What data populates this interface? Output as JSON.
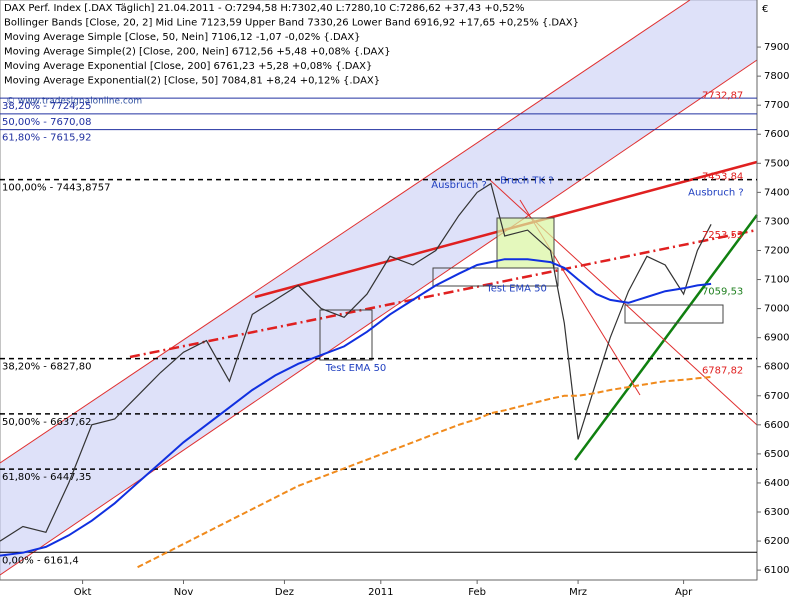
{
  "chart_data": {
    "type": "line",
    "currency": "€",
    "watermark": "© www.tradesignalonline.com",
    "legend_lines": [
      "DAX Perf. Index [.DAX  Täglich]  21.04.2011 - O:7294,58 H:7302,40 L:7280,10 C:7286,62 +37,43 +0,52%",
      "Bollinger Bands [Close, 20, 2] Mid Line 7123,59 Upper Band 7330,26 Lower Band 6916,92 +17,65 +0,25% {.DAX}",
      "Moving Average Simple [Close, 50, Nein] 7106,12 -1,07 -0,02% {.DAX}",
      "Moving Average Simple(2) [Close, 200, Nein] 6712,56 +5,48 +0,08% {.DAX}",
      "Moving Average Exponential [Close, 200] 6761,23 +5,28 +0,08% {.DAX}",
      "Moving Average Exponential(2) [Close, 50] 7084,81 +8,24 +0,12% {.DAX}"
    ],
    "x": [
      0,
      5,
      10,
      15,
      20,
      25,
      30,
      35,
      40,
      45,
      50,
      55,
      60,
      65,
      70,
      75,
      80,
      85,
      90,
      95,
      100,
      104,
      107,
      110,
      115,
      120,
      123,
      126,
      130,
      133,
      137,
      141,
      145,
      149,
      152,
      155
    ],
    "series": [
      {
        "name": "Close",
        "color": "#333333",
        "values": [
          6200,
          6250,
          6230,
          6400,
          6600,
          6620,
          6700,
          6780,
          6850,
          6890,
          6750,
          6980,
          7030,
          7080,
          7000,
          6970,
          7050,
          7180,
          7150,
          7200,
          7320,
          7400,
          7430,
          7250,
          7270,
          7200,
          6950,
          6550,
          6750,
          6900,
          7060,
          7180,
          7150,
          7050,
          7200,
          7290
        ]
      },
      {
        "name": "EMA 50",
        "color": "#1030e0",
        "values": [
          6150,
          6160,
          6180,
          6220,
          6270,
          6330,
          6400,
          6470,
          6540,
          6600,
          6660,
          6720,
          6770,
          6810,
          6840,
          6870,
          6920,
          6980,
          7030,
          7080,
          7120,
          7150,
          7160,
          7170,
          7170,
          7160,
          7140,
          7100,
          7050,
          7030,
          7020,
          7040,
          7060,
          7070,
          7080,
          7085
        ]
      },
      {
        "name": "EMA 200",
        "color": "#f08a1c",
        "dashed": true,
        "values": [
          null,
          null,
          null,
          null,
          null,
          null,
          6110,
          6150,
          6190,
          6230,
          6270,
          6310,
          6350,
          6390,
          6420,
          6450,
          6480,
          6510,
          6540,
          6570,
          6600,
          6620,
          6640,
          6650,
          6670,
          6690,
          6700,
          6700,
          6710,
          6720,
          6730,
          6740,
          6750,
          6755,
          6760,
          6765
        ]
      }
    ],
    "xlim": [
      0,
      165
    ],
    "xticks": [
      {
        "value": 18,
        "label": "Okt"
      },
      {
        "value": 40,
        "label": "Nov"
      },
      {
        "value": 62,
        "label": "Dez"
      },
      {
        "value": 83,
        "label": "2011"
      },
      {
        "value": 104,
        "label": "Feb"
      },
      {
        "value": 126,
        "label": "Mrz"
      },
      {
        "value": 149,
        "label": "Apr"
      }
    ],
    "ylim": [
      6066,
      8062
    ],
    "yticks": [
      6100,
      6200,
      6300,
      6400,
      6500,
      6600,
      6700,
      6800,
      6900,
      7000,
      7100,
      7200,
      7300,
      7400,
      7500,
      7600,
      7700,
      7800,
      7900
    ],
    "levels": [
      {
        "label": "38,20% - 7724,25",
        "value": 7724.25,
        "color": "#2030a0",
        "dashed": false
      },
      {
        "label": "50,00% - 7670,08",
        "value": 7670.08,
        "color": "#2030a0",
        "dashed": false
      },
      {
        "label": "61,80% - 7615,92",
        "value": 7615.92,
        "color": "#2030a0",
        "dashed": false
      },
      {
        "label": "100,00% - 7443,8757",
        "value": 7443.8757,
        "color": "#000000",
        "dashed": true
      },
      {
        "label": "38,20% - 6827,80",
        "value": 6827.8,
        "color": "#000000",
        "dashed": true
      },
      {
        "label": "50,00% - 6637,62",
        "value": 6637.62,
        "color": "#000000",
        "dashed": true
      },
      {
        "label": "61,80% - 6447,35",
        "value": 6447.35,
        "color": "#000000",
        "dashed": true
      },
      {
        "label": "0,00% - 6161,4",
        "value": 6161.4,
        "color": "#000000",
        "dashed": false
      }
    ],
    "annotations": [
      {
        "text": "Ausbruch ?",
        "x": 94,
        "y": 7425,
        "color": "#2040c0"
      },
      {
        "text": "Bruch TK ?",
        "x": 109,
        "y": 7440,
        "color": "#2040c0"
      },
      {
        "text": "Test EMA 50",
        "x": 106,
        "y": 7070,
        "color": "#2040c0"
      },
      {
        "text": "Test EMA 50",
        "x": 71,
        "y": 6795,
        "color": "#2040c0"
      },
      {
        "text": "Ausbruch ?",
        "x": 150,
        "y": 7400,
        "color": "#2040c0"
      },
      {
        "text": "7732,87",
        "x": 153,
        "y": 7732.87,
        "color": "#e02020"
      },
      {
        "text": "7453,84",
        "x": 153,
        "y": 7453.84,
        "color": "#e02020"
      },
      {
        "text": "7253,53",
        "x": 153,
        "y": 7253.53,
        "color": "#e02020"
      },
      {
        "text": "7059,53",
        "x": 153,
        "y": 7059.53,
        "color": "#208020"
      },
      {
        "text": "6787,82",
        "x": 153,
        "y": 6787.82,
        "color": "#e02020"
      }
    ]
  }
}
